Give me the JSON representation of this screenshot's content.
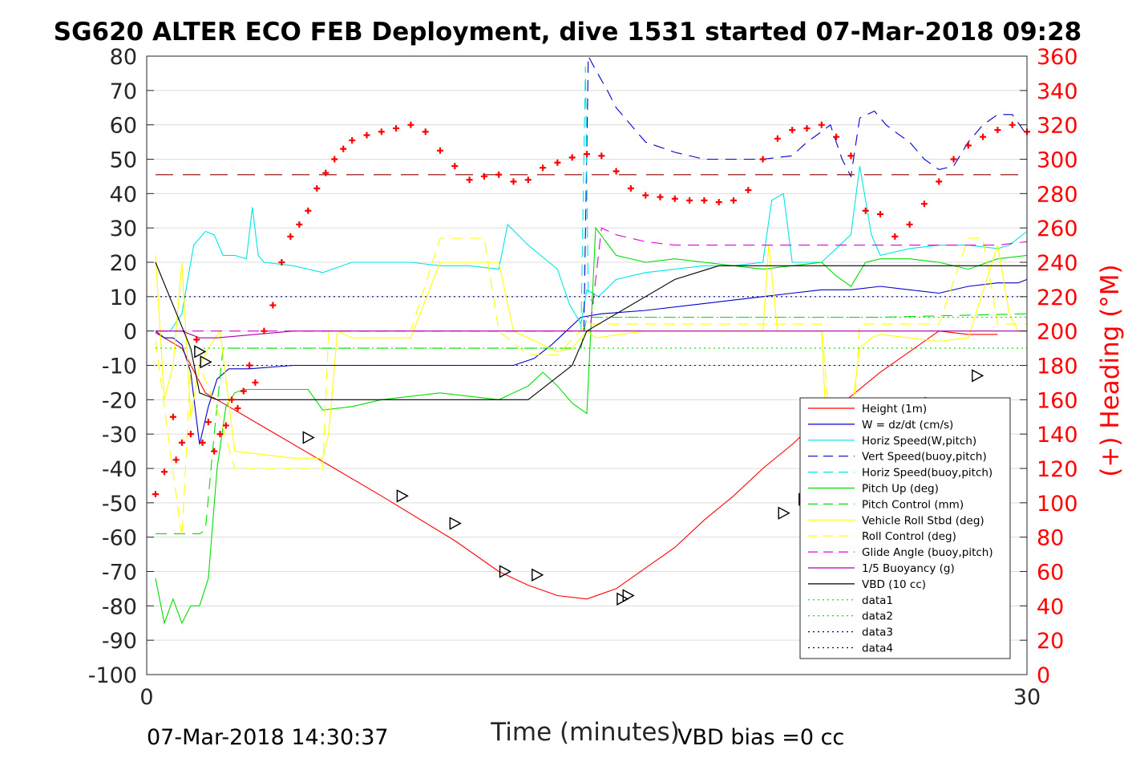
{
  "chart_data": {
    "type": "line",
    "title": "SG620 ALTER ECO FEB Deployment, dive 1531 started 07-Mar-2018 09:28",
    "xlabel": "Time (minutes)",
    "ylabel_right": "(+) Heading (°M)",
    "xlim": [
      0,
      30
    ],
    "ylim": [
      -100,
      80
    ],
    "ylim_right": [
      0,
      360
    ],
    "x_ticks": [
      "0",
      "30"
    ],
    "y_ticks": [
      "80",
      "70",
      "60",
      "50",
      "40",
      "30",
      "20",
      "10",
      "0",
      "-10",
      "-20",
      "-30",
      "-40",
      "-50",
      "-60",
      "-70",
      "-80",
      "-90",
      "-100"
    ],
    "y_ticks_right": [
      "360",
      "340",
      "320",
      "300",
      "280",
      "260",
      "240",
      "220",
      "200",
      "180",
      "160",
      "140",
      "120",
      "100",
      "80",
      "60",
      "40",
      "20",
      "0"
    ],
    "grid": true,
    "legend_position": "lower-right",
    "footer_left": "07-Mar-2018 14:30:37",
    "footer_right": "VBD bias =0 cc",
    "legend": [
      {
        "label": "Height (1m)",
        "color": "#ff0000",
        "style": "solid"
      },
      {
        "label": "W = dz/dt (cm/s)",
        "color": "#0000cc",
        "style": "solid"
      },
      {
        "label": "Horiz Speed(W,pitch)",
        "color": "#00e5e5",
        "style": "solid"
      },
      {
        "label": "Vert Speed(buoy,pitch)",
        "color": "#0000cc",
        "style": "dashed"
      },
      {
        "label": "Horiz Speed(buoy,pitch)",
        "color": "#00e5e5",
        "style": "dashed"
      },
      {
        "label": "Pitch Up (deg)",
        "color": "#00dd00",
        "style": "solid"
      },
      {
        "label": "Pitch Control (mm)",
        "color": "#00dd00",
        "style": "dashed"
      },
      {
        "label": "Vehicle Roll Stbd (deg)",
        "color": "#ffff00",
        "style": "solid"
      },
      {
        "label": "Roll Control (deg)",
        "color": "#ffff00",
        "style": "dashed"
      },
      {
        "label": "Glide Angle (buoy,pitch)",
        "color": "#dd00dd",
        "style": "dashed"
      },
      {
        "label": "1/5 Buoyancy (g)",
        "color": "#aa00aa",
        "style": "solid"
      },
      {
        "label": "VBD (10 cc)",
        "color": "#000000",
        "style": "solid"
      },
      {
        "label": "data1",
        "color": "#00dd00",
        "style": "dotted"
      },
      {
        "label": "data2",
        "color": "#00dd00",
        "style": "dotted"
      },
      {
        "label": "data3",
        "color": "#000080",
        "style": "dotted"
      },
      {
        "label": "data4",
        "color": "#000080",
        "style": "dotted"
      }
    ],
    "series": [
      {
        "name": "Height (1m)",
        "color": "#ff0000",
        "dash": "",
        "x": [
          0.3,
          1.2,
          2.0,
          4.0,
          6.0,
          8.0,
          10.5,
          12.0,
          13.0,
          14.0,
          15.0,
          16.0,
          17.0,
          18.0,
          19.0,
          20.0,
          21.0,
          22.0,
          23.0,
          24.0,
          25.0,
          26.0,
          27.0,
          28.0,
          29.0
        ],
        "y": [
          -0.5,
          -5,
          -18,
          -28,
          -38,
          -48,
          -61,
          -70,
          -74,
          -77,
          -78,
          -75,
          -69,
          -63,
          -55,
          -48,
          -40,
          -33,
          -25,
          -19,
          -12,
          -6,
          0,
          -1,
          -1
        ]
      },
      {
        "name": "W = dz/dt (cm/s)",
        "color": "#0000cc",
        "dash": "",
        "x": [
          0.3,
          0.6,
          0.9,
          1.2,
          1.5,
          1.8,
          2.1,
          2.4,
          2.8,
          3.5,
          5,
          7,
          9,
          11,
          12.5,
          13.2,
          13.8,
          14.3,
          14.8,
          15.5,
          17,
          19,
          20,
          21,
          22,
          23,
          24,
          25,
          26,
          27,
          28,
          29.0,
          29.7,
          30.0
        ],
        "y": [
          0,
          -2,
          -2,
          -4,
          -12,
          -33,
          -22,
          -14,
          -11,
          -11,
          -10,
          -10,
          -10,
          -10,
          -10,
          -8,
          -4,
          0,
          4,
          5,
          6,
          8,
          9,
          10,
          11,
          12,
          12,
          13,
          12,
          11,
          13,
          14,
          14,
          15
        ]
      },
      {
        "name": "Horiz Speed(W,pitch)",
        "color": "#00e5e5",
        "dash": "",
        "x": [
          0.3,
          0.8,
          1.2,
          1.6,
          2.0,
          2.3,
          2.6,
          3.0,
          3.4,
          3.6,
          3.8,
          4.0,
          5,
          6,
          7,
          8,
          9,
          10,
          11,
          12,
          12.3,
          13.0,
          14.0,
          14.4,
          14.8,
          15.0,
          15.4,
          16,
          17,
          18,
          19,
          20,
          21,
          21.3,
          21.7,
          22,
          23,
          24,
          24.3,
          24.7,
          25,
          26,
          27,
          28,
          29,
          29.4,
          30.0
        ],
        "y": [
          0,
          0,
          5,
          25,
          29,
          28,
          22,
          22,
          21,
          36,
          22,
          20,
          19,
          17,
          20,
          20,
          20,
          19,
          19,
          18,
          31,
          25,
          18,
          8,
          2,
          12,
          10,
          15,
          17,
          18,
          19,
          19,
          20,
          38,
          40,
          20,
          20,
          28,
          48,
          28,
          22,
          24,
          25,
          25,
          24,
          25,
          29
        ]
      },
      {
        "name": "Vert Speed(buoy,pitch)",
        "color": "#0000cc",
        "dash": "14,9",
        "x": [
          14.9,
          15.05,
          15.3,
          15.7,
          16.0,
          16.5,
          17.0,
          18.0,
          19.0,
          20.0,
          21.0,
          22.0,
          22.5,
          23.0,
          23.3,
          23.7,
          24.0,
          24.3,
          24.8,
          25.2,
          25.5,
          26.0,
          26.5,
          27.0,
          27.5,
          28.0,
          28.5,
          29.0,
          29.5,
          30.0
        ],
        "y": [
          0,
          80,
          76,
          70,
          65,
          60,
          55,
          52,
          50,
          50,
          50,
          51,
          55,
          58,
          60,
          50,
          45,
          62,
          64,
          60,
          58,
          55,
          50,
          47,
          48,
          55,
          60,
          63,
          63,
          57
        ]
      },
      {
        "name": "Horiz Speed(buoy,pitch)",
        "color": "#00e5e5",
        "dash": "14,9",
        "x": [
          14.8,
          14.95,
          15.05,
          15.25
        ],
        "y": [
          0,
          77,
          10,
          8
        ]
      },
      {
        "name": "Pitch Up (deg)",
        "color": "#00dd00",
        "dash": "",
        "x": [
          0.3,
          0.6,
          0.9,
          1.2,
          1.5,
          1.8,
          2.1,
          2.4,
          2.7,
          3.0,
          3.3,
          4.0,
          5.0,
          5.5,
          6.0,
          7.0,
          8.0,
          9.0,
          10.0,
          11.0,
          12.0,
          13.0,
          13.5,
          14.0,
          14.5,
          15.0,
          15.3,
          16,
          17,
          18,
          19,
          20,
          21,
          22,
          23,
          23.5,
          24,
          24.5,
          25,
          26,
          27,
          28,
          29,
          30.0
        ],
        "y": [
          -72,
          -85,
          -78,
          -85,
          -80,
          -80,
          -72,
          -40,
          -22,
          -18,
          -17,
          -17,
          -17,
          -17,
          -23,
          -22,
          -20,
          -19,
          -18,
          -19,
          -20,
          -16,
          -12,
          -16,
          -21,
          -24,
          30,
          22,
          20,
          21,
          20,
          19,
          18,
          19,
          20,
          16,
          13,
          20,
          21,
          21,
          20,
          18,
          21,
          22
        ]
      },
      {
        "name": "Pitch Control (mm)",
        "color": "#00dd00",
        "dash": "14,9",
        "x": [
          0.3,
          1.2,
          1.5,
          1.8,
          2.0,
          2.3,
          2.6,
          3.0,
          5,
          8,
          11,
          14,
          14.8,
          15.0,
          15.5,
          20,
          25,
          30.0
        ],
        "y": [
          -59,
          -59,
          -59,
          -59,
          -58,
          -30,
          -5,
          -5,
          -5,
          -5,
          -5,
          -5,
          -5,
          4,
          4,
          4,
          4,
          5
        ]
      },
      {
        "name": "Vehicle Roll Stbd (deg)",
        "color": "#ffff00",
        "dash": "",
        "x": [
          0.3,
          0.6,
          0.9,
          1.2,
          1.5,
          1.8,
          2.1,
          2.5,
          3.0,
          5,
          6,
          6.2,
          6.5,
          7,
          8,
          9,
          10,
          11,
          12,
          12.5,
          14,
          14.5,
          15.0,
          15.3,
          17,
          19,
          20,
          21,
          21.2,
          21.5,
          22,
          23,
          23.2,
          23.5,
          24,
          24.3,
          24.7,
          25,
          26,
          27,
          28,
          29,
          29.4,
          29.7,
          30.0
        ],
        "y": [
          22,
          -20,
          -10,
          20,
          -25,
          -10,
          -5,
          0,
          -35,
          -37,
          -37,
          -30,
          0,
          -2,
          -2,
          -2,
          20,
          20,
          20,
          0,
          -6,
          -5,
          0,
          -2,
          0,
          0,
          0,
          0,
          25,
          0,
          0,
          0,
          -35,
          -40,
          -25,
          -5,
          -2,
          -1,
          -2,
          -3,
          -2,
          25,
          5,
          0,
          0
        ]
      },
      {
        "name": "Roll Control (deg)",
        "color": "#ffff00",
        "dash": "14,9",
        "x": [
          0.3,
          1.2,
          1.5,
          1.8,
          2.5,
          3.0,
          5,
          6,
          6.2,
          6.5,
          8,
          9,
          10,
          10.5,
          11,
          11.5,
          12,
          13,
          14,
          15,
          16,
          17,
          19,
          20,
          21,
          21.5,
          22,
          23,
          23.3,
          23.7,
          24,
          24.3,
          26,
          27,
          28,
          28.5,
          29,
          29.5,
          30.0
        ],
        "y": [
          -3,
          -60,
          -10,
          -10,
          -25,
          -40,
          -40,
          -40,
          0,
          0,
          0,
          0,
          27,
          27,
          27,
          27,
          0,
          -7,
          -7,
          2,
          2,
          2,
          2,
          2,
          2,
          2,
          2,
          2,
          -30,
          -40,
          -40,
          2,
          2,
          2,
          27,
          27,
          2,
          2,
          2
        ]
      },
      {
        "name": "Glide Angle (buoy,pitch)",
        "color": "#dd00dd",
        "dash": "14,9",
        "x": [
          0.3,
          5,
          10,
          15,
          15.1,
          15.5,
          16,
          17,
          18,
          19,
          20,
          21,
          22,
          23,
          24,
          25,
          26,
          27,
          28,
          29,
          30.0
        ],
        "y": [
          0,
          0,
          0,
          0,
          0,
          30,
          28,
          26,
          25,
          25,
          25,
          25,
          25,
          25,
          25,
          25,
          25,
          25,
          25,
          25,
          26
        ]
      },
      {
        "name": "1/5 Buoyancy (g)",
        "color": "#aa00aa",
        "dash": "",
        "x": [
          0.3,
          1.2,
          1.8,
          2.4,
          5,
          10,
          15,
          15.3,
          16,
          17,
          18,
          19,
          20,
          21,
          22,
          23,
          24,
          25,
          26,
          27,
          28,
          29,
          30.0
        ],
        "y": [
          0,
          0,
          -2,
          -2,
          0,
          0,
          0,
          0,
          0,
          0,
          0,
          0,
          0,
          0,
          0,
          0,
          0,
          0,
          0,
          0,
          0,
          0,
          0
        ]
      },
      {
        "name": "VBD (10 cc)",
        "color": "#000000",
        "dash": "",
        "x": [
          0.3,
          1.5,
          1.8,
          2.4,
          5,
          8,
          10,
          13,
          14.5,
          15.0,
          16,
          17,
          18,
          19.5,
          20,
          22,
          25,
          28,
          30.0
        ],
        "y": [
          20,
          -5,
          -18,
          -20,
          -20,
          -20,
          -20,
          -20,
          -10,
          0,
          5,
          10,
          15,
          19,
          19,
          19,
          19,
          19,
          19
        ]
      },
      {
        "name": "data1",
        "color": "#00dd00",
        "dash": "2,4",
        "x": [
          0.3,
          30.0
        ],
        "y": [
          -5,
          -5
        ]
      },
      {
        "name": "data2",
        "color": "#00dd00",
        "dash": "2,4",
        "x": [
          15.0,
          30.0
        ],
        "y": [
          4,
          4
        ]
      },
      {
        "name": "data3",
        "color": "#000080",
        "dash": "2,4",
        "x": [
          0.3,
          30.0
        ],
        "y": [
          10,
          10
        ]
      },
      {
        "name": "data4",
        "color": "#000080",
        "dash": "2,4",
        "x": [
          0.3,
          30.0
        ],
        "y": [
          -10,
          -10
        ]
      },
      {
        "name": "",
        "color": "#8b0000",
        "dash": "22,12",
        "x": [
          0.3,
          30.0
        ],
        "y": [
          45.5,
          45.5
        ]
      }
    ],
    "heading": {
      "name": "(+) Heading (°M)",
      "color": "#ff0000",
      "x": [
        0.3,
        0.6,
        0.9,
        1.0,
        1.2,
        1.5,
        1.7,
        1.9,
        2.1,
        2.3,
        2.5,
        2.7,
        2.9,
        3.1,
        3.3,
        3.5,
        3.7,
        4.0,
        4.3,
        4.6,
        4.9,
        5.2,
        5.5,
        5.8,
        6.1,
        6.4,
        6.7,
        7.0,
        7.5,
        8,
        8.5,
        9,
        9.5,
        10,
        10.5,
        11,
        11.5,
        12,
        12.5,
        13,
        13.5,
        14,
        14.5,
        15.0,
        15.5,
        16,
        16.5,
        17,
        17.5,
        18,
        18.5,
        19,
        19.5,
        20,
        20.5,
        21,
        21.5,
        22,
        22.5,
        23,
        23.5,
        24,
        24.5,
        25,
        25.5,
        26,
        26.5,
        27,
        27.5,
        28,
        28.5,
        29,
        29.5,
        30.0
      ],
      "h": [
        105,
        118,
        150,
        125,
        135,
        140,
        195,
        135,
        147,
        130,
        140,
        145,
        160,
        155,
        165,
        180,
        170,
        200,
        215,
        240,
        255,
        262,
        270,
        283,
        292,
        300,
        306,
        311,
        314,
        316,
        318,
        320,
        316,
        305,
        296,
        288,
        290,
        291,
        287,
        288,
        295,
        298,
        301,
        303,
        302,
        293,
        283,
        279,
        278,
        277,
        276,
        276,
        275,
        276,
        282,
        300,
        312,
        317,
        318,
        320,
        313,
        302,
        270,
        268,
        255,
        262,
        274,
        287,
        300,
        308,
        313,
        317,
        320,
        316
      ]
    },
    "markers_triangle": [
      {
        "x": 1.8,
        "y": -6
      },
      {
        "x": 2.0,
        "y": -9
      },
      {
        "x": 5.5,
        "y": -31
      },
      {
        "x": 8.7,
        "y": -48
      },
      {
        "x": 10.5,
        "y": -56
      },
      {
        "x": 12.2,
        "y": -70
      },
      {
        "x": 13.3,
        "y": -71
      },
      {
        "x": 16.2,
        "y": -78
      },
      {
        "x": 16.4,
        "y": -77
      },
      {
        "x": 21.7,
        "y": -53
      },
      {
        "x": 22.4,
        "y": -49
      },
      {
        "x": 24.1,
        "y": -38
      },
      {
        "x": 25.0,
        "y": -33
      },
      {
        "x": 26.7,
        "y": -21
      },
      {
        "x": 28.3,
        "y": -13
      }
    ]
  }
}
